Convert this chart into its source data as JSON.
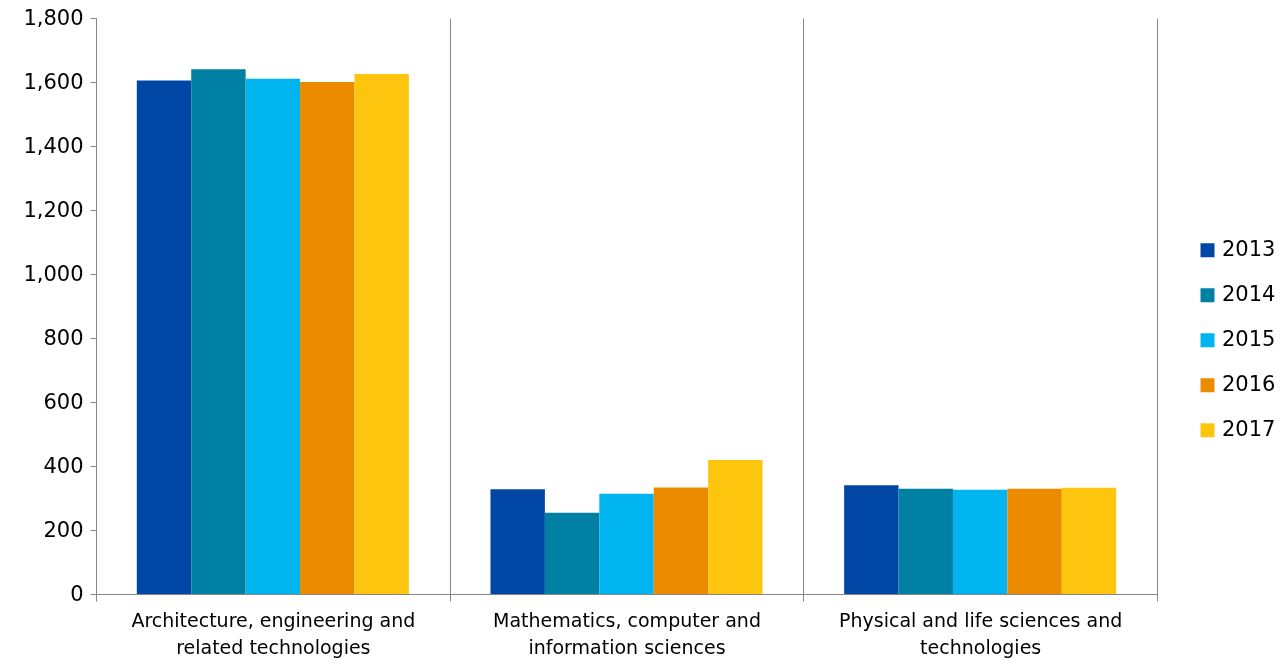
{
  "chart_data": {
    "type": "bar",
    "categories": [
      "Architecture, engineering and related technologies",
      "Mathematics, computer and information sciences",
      "Physical and life sciences and technologies"
    ],
    "series": [
      {
        "name": "2013",
        "color": "#0046a4",
        "values": [
          1605,
          327,
          340
        ]
      },
      {
        "name": "2014",
        "color": "#0080a3",
        "values": [
          1640,
          254,
          329
        ]
      },
      {
        "name": "2015",
        "color": "#00b4f0",
        "values": [
          1610,
          313,
          326
        ]
      },
      {
        "name": "2016",
        "color": "#ec8b00",
        "values": [
          1600,
          333,
          329
        ]
      },
      {
        "name": "2017",
        "color": "#fec50e",
        "values": [
          1625,
          419,
          332
        ]
      }
    ],
    "ylim": [
      0,
      1800
    ],
    "yticks": [
      0,
      200,
      400,
      600,
      800,
      {
        "value": 1000,
        "label": "1,000"
      },
      {
        "value": 1200,
        "label": "1,200"
      },
      {
        "value": 1400,
        "label": "1,400"
      },
      {
        "value": 1600,
        "label": "1,600"
      },
      {
        "value": 1800,
        "label": "1,800"
      }
    ],
    "grid": "x",
    "legend": "right"
  }
}
